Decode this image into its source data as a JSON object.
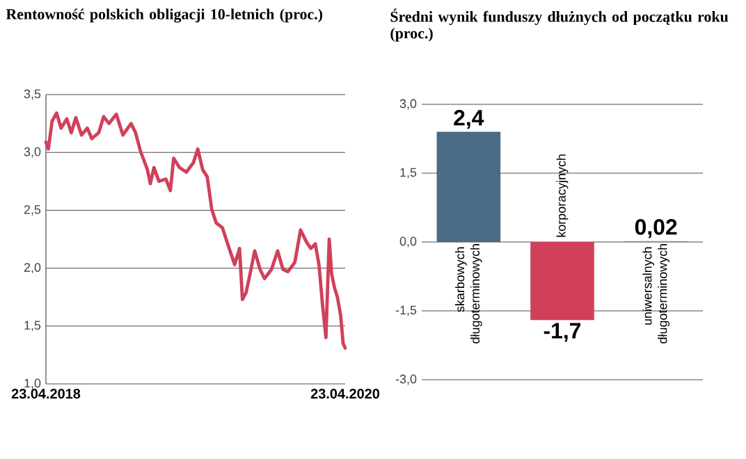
{
  "chart_data": [
    {
      "type": "line",
      "title": "Rentowność polskich obligacji 10-letnich (proc.)",
      "series": [
        {
          "color": "#d0405a",
          "x": [
            "2018-04-23",
            "2018-04-29",
            "2018-05-08",
            "2018-05-19",
            "2018-05-30",
            "2018-06-13",
            "2018-06-24",
            "2018-07-05",
            "2018-07-19",
            "2018-08-02",
            "2018-08-13",
            "2018-08-30",
            "2018-09-11",
            "2018-09-24",
            "2018-10-12",
            "2018-10-28",
            "2018-11-17",
            "2018-11-28",
            "2018-12-10",
            "2018-12-27",
            "2019-01-03",
            "2019-01-12",
            "2019-01-24",
            "2019-02-10",
            "2019-02-21",
            "2019-03-01",
            "2019-03-15",
            "2019-04-01",
            "2019-04-18",
            "2019-04-29",
            "2019-05-11",
            "2019-05-22",
            "2019-06-02",
            "2019-06-13",
            "2019-06-28",
            "2019-07-11",
            "2019-07-28",
            "2019-08-09",
            "2019-08-16",
            "2019-08-25",
            "2019-09-06",
            "2019-09-15",
            "2019-09-28",
            "2019-10-09",
            "2019-10-26",
            "2019-11-10",
            "2019-11-23",
            "2019-12-05",
            "2019-12-22",
            "2020-01-05",
            "2020-01-19",
            "2020-01-30",
            "2020-02-10",
            "2020-02-19",
            "2020-02-28",
            "2020-03-07",
            "2020-03-15",
            "2020-03-21",
            "2020-03-28",
            "2020-04-04",
            "2020-04-12",
            "2020-04-18",
            "2020-04-23"
          ],
          "values": [
            3.09,
            3.03,
            3.27,
            3.34,
            3.21,
            3.29,
            3.17,
            3.3,
            3.15,
            3.21,
            3.12,
            3.17,
            3.31,
            3.25,
            3.33,
            3.15,
            3.25,
            3.17,
            3.01,
            2.85,
            2.73,
            2.87,
            2.75,
            2.77,
            2.67,
            2.95,
            2.87,
            2.83,
            2.91,
            3.03,
            2.85,
            2.79,
            2.51,
            2.39,
            2.35,
            2.21,
            2.03,
            2.17,
            1.73,
            1.79,
            1.99,
            2.15,
            1.99,
            1.91,
            1.99,
            2.15,
            1.99,
            1.97,
            2.05,
            2.33,
            2.23,
            2.17,
            2.21,
            2.03,
            1.67,
            1.4,
            2.25,
            1.95,
            1.83,
            1.75,
            1.59,
            1.35,
            1.31
          ]
        }
      ],
      "xlim": [
        "2018-04-23",
        "2020-04-23"
      ],
      "xticks": [
        {
          "value": "2018-04-23",
          "label": "23.04.2018"
        },
        {
          "value": "2020-04-23",
          "label": "23.04.2020"
        }
      ],
      "ylim": [
        1.0,
        3.5
      ],
      "yticks": [
        {
          "value": 1.0,
          "label": "1,0"
        },
        {
          "value": 1.5,
          "label": "1,5"
        },
        {
          "value": 2.0,
          "label": "2,0"
        },
        {
          "value": 2.5,
          "label": "2,5"
        },
        {
          "value": 3.0,
          "label": "3,0"
        },
        {
          "value": 3.5,
          "label": "3,5"
        }
      ],
      "grid": "y",
      "line_style": "solid",
      "marker": "none"
    },
    {
      "type": "bar",
      "title": "Średni wynik funduszy dłużnych od początku roku (proc.)",
      "categories": [
        "skarbowych długoterminowych",
        "korporacyjnych",
        "uniwersalnych długoterminowych"
      ],
      "values": [
        2.4,
        -1.7,
        0.02
      ],
      "colors": [
        "#4a6a85",
        "#d0405a",
        "#8a8a8a"
      ],
      "value_labels": [
        "2,4",
        "-1,7",
        "0,02"
      ],
      "ylim": [
        -3.0,
        3.0
      ],
      "yticks": [
        {
          "value": -3.0,
          "label": "-3,0"
        },
        {
          "value": -1.5,
          "label": "-1,5"
        },
        {
          "value": 0.0,
          "label": "0,0"
        },
        {
          "value": 1.5,
          "label": "1,5"
        },
        {
          "value": 3.0,
          "label": "3,0"
        }
      ],
      "grid": "y"
    }
  ]
}
